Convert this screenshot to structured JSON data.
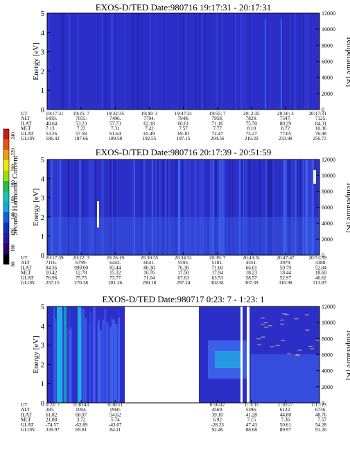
{
  "colors": {
    "background_blue": "#2b2fc8",
    "stripe_dark": "#1e22a8",
    "stripe_light": "#3c46e0",
    "bright_blue": "#3f6cf0",
    "cyan": "#18c8e0",
    "teal": "#14b4b0",
    "white": "#ffffff"
  },
  "colorbar": {
    "label": "Second Harmonic Current",
    "ticks": [
      "240",
      "220",
      "200",
      "180",
      "160",
      "140",
      "120",
      "100",
      "80"
    ],
    "colors": [
      "#d01818",
      "#f05010",
      "#f0a000",
      "#f0e800",
      "#a0e000",
      "#20c040",
      "#10c8b0",
      "#10a8e0",
      "#1060e0",
      "#1030c0",
      "#2818a0",
      "#300070",
      "#000000"
    ]
  },
  "chart_data": [
    {
      "type": "heatmap",
      "title": "EXOS-D/TED   Date:980716   19:17:31 - 20:17:31",
      "ylabel": "Energy [eV]",
      "y2label": "Temperature [K]",
      "ylim": [
        0,
        5
      ],
      "y2lim": [
        0,
        12000
      ],
      "yticks": [
        "0",
        "1",
        "2",
        "3",
        "4",
        "5"
      ],
      "y2ticks": [
        "0",
        "2000",
        "4000",
        "6000",
        "8000",
        "10000",
        "12000"
      ],
      "table_labels": [
        "UT",
        "ALT",
        "ILAT",
        "MLT",
        "GLAT",
        "GLON"
      ],
      "table_columns": [
        [
          "19:17:31",
          "6459.",
          "48.64",
          "7.13",
          "53.26",
          "186.42"
        ],
        [
          "19:25: 7",
          "7055.",
          "53.23",
          "7.22",
          "57.58",
          "187.66"
        ],
        [
          "19:32:35",
          "7496.",
          "57.73",
          "7.31",
          "61.64",
          "189.58"
        ],
        [
          "19:40: 3",
          "7794.",
          "62.18",
          "7.42",
          "65.49",
          "192.55"
        ],
        [
          "19:47:31",
          "7948.",
          "66.61",
          "7.57",
          "69.10",
          "197.15"
        ],
        [
          "19:55: 7",
          "7958.",
          "71.16",
          "7.77",
          "72.47",
          "204.56"
        ],
        [
          "20: 2:35",
          "7824.",
          "75.70",
          "8.10",
          "75.27",
          "216.20"
        ],
        [
          "20:10: 3",
          "7547.",
          "80.29",
          "8.72",
          "77.05",
          "233.98"
        ],
        [
          "20:17:31",
          "7125.",
          "84.31",
          "10.36",
          "76.98",
          "256.73"
        ]
      ]
    },
    {
      "type": "heatmap",
      "title": "EXOS-D/TED   Date:980716   20:17:39 - 20:51:59",
      "ylabel": "Energy [eV]",
      "y2label": "Temperature [K]",
      "ylim": [
        0,
        5
      ],
      "y2lim": [
        0,
        12000
      ],
      "yticks": [
        "0",
        "1",
        "2",
        "3",
        "4",
        "5"
      ],
      "y2ticks": [
        "0",
        "2000",
        "4000",
        "6000",
        "8000",
        "10000",
        "12000"
      ],
      "table_labels": [
        "UT",
        "ALT",
        "ILAT",
        "MLT",
        "GLAT",
        "GLON"
      ],
      "table_columns": [
        [
          "20:17:39",
          "7116.",
          "84.36",
          "10.42",
          "76.96",
          "257.15"
        ],
        [
          "20:22: 3",
          "6799.",
          "999.00",
          "12.78",
          "75.75",
          "270.38"
        ],
        [
          "20:26:19",
          "6443.",
          "83.44",
          "15.32",
          "73.77",
          "281.26"
        ],
        [
          "20:30:35",
          "6041.",
          "80.30",
          "16.76",
          "71.04",
          "290.18"
        ],
        [
          "20:34:51",
          "5593.",
          "76.30",
          "17.50",
          "67.63",
          "297.24"
        ],
        [
          "20:39: 7",
          "5101.",
          "71.60",
          "17.94",
          "63.53",
          "302.81"
        ],
        [
          "20:43:31",
          "4551.",
          "66.01",
          "18.23",
          "58.57",
          "307.39"
        ],
        [
          "20:47:47",
          "3979.",
          "59.79",
          "18.44",
          "52.97",
          "310.98"
        ],
        [
          "20:51:59",
          "3388.",
          "52.84",
          "18.60",
          "46.62",
          "313.87"
        ]
      ]
    },
    {
      "type": "heatmap",
      "title": "EXOS-D/TED   Date:980717   0:23: 7 - 1:23: 1",
      "ylabel": "Energy [eV]",
      "y2label": "Temperature [K]",
      "ylim": [
        0,
        5
      ],
      "y2lim": [
        0,
        12000
      ],
      "yticks": [
        "0",
        "1",
        "2",
        "3",
        "4",
        "5"
      ],
      "y2ticks": [
        "0",
        "2000",
        "4000",
        "6000",
        "8000",
        "10000",
        "12000"
      ],
      "table_labels": [
        "UT",
        "ALT",
        "ILAT",
        "MLT",
        "GLAT",
        "GLON"
      ],
      "table_columns": [
        [
          "0:23: 7",
          "385.",
          "61.82",
          "21.88",
          "-74.57",
          "339.97"
        ],
        [
          "0:30:43",
          "1004.",
          "68.97",
          "3.72",
          "-62.89",
          "69.81"
        ],
        [
          "0:38:11",
          "1960.",
          "54.62",
          "5.74",
          "-43.07",
          "84.11"
        ],
        [
          "",
          "",
          "",
          "",
          "",
          ""
        ],
        [
          "",
          "",
          "",
          "",
          "",
          ""
        ],
        [
          "0:56:47",
          "4569.",
          "39.10",
          "6.92",
          "-28.23",
          "92.46"
        ],
        [
          "1: 3:35",
          "5396.",
          "41.28",
          "7.15",
          "47.43",
          "88.68"
        ],
        [
          "1:10:27",
          "6122.",
          "44.80",
          "7.36",
          "50.61",
          "89.97"
        ],
        [
          "1:17:23",
          "6736.",
          "48.76",
          "7.57",
          "54.28",
          "91.20"
        ]
      ]
    }
  ]
}
